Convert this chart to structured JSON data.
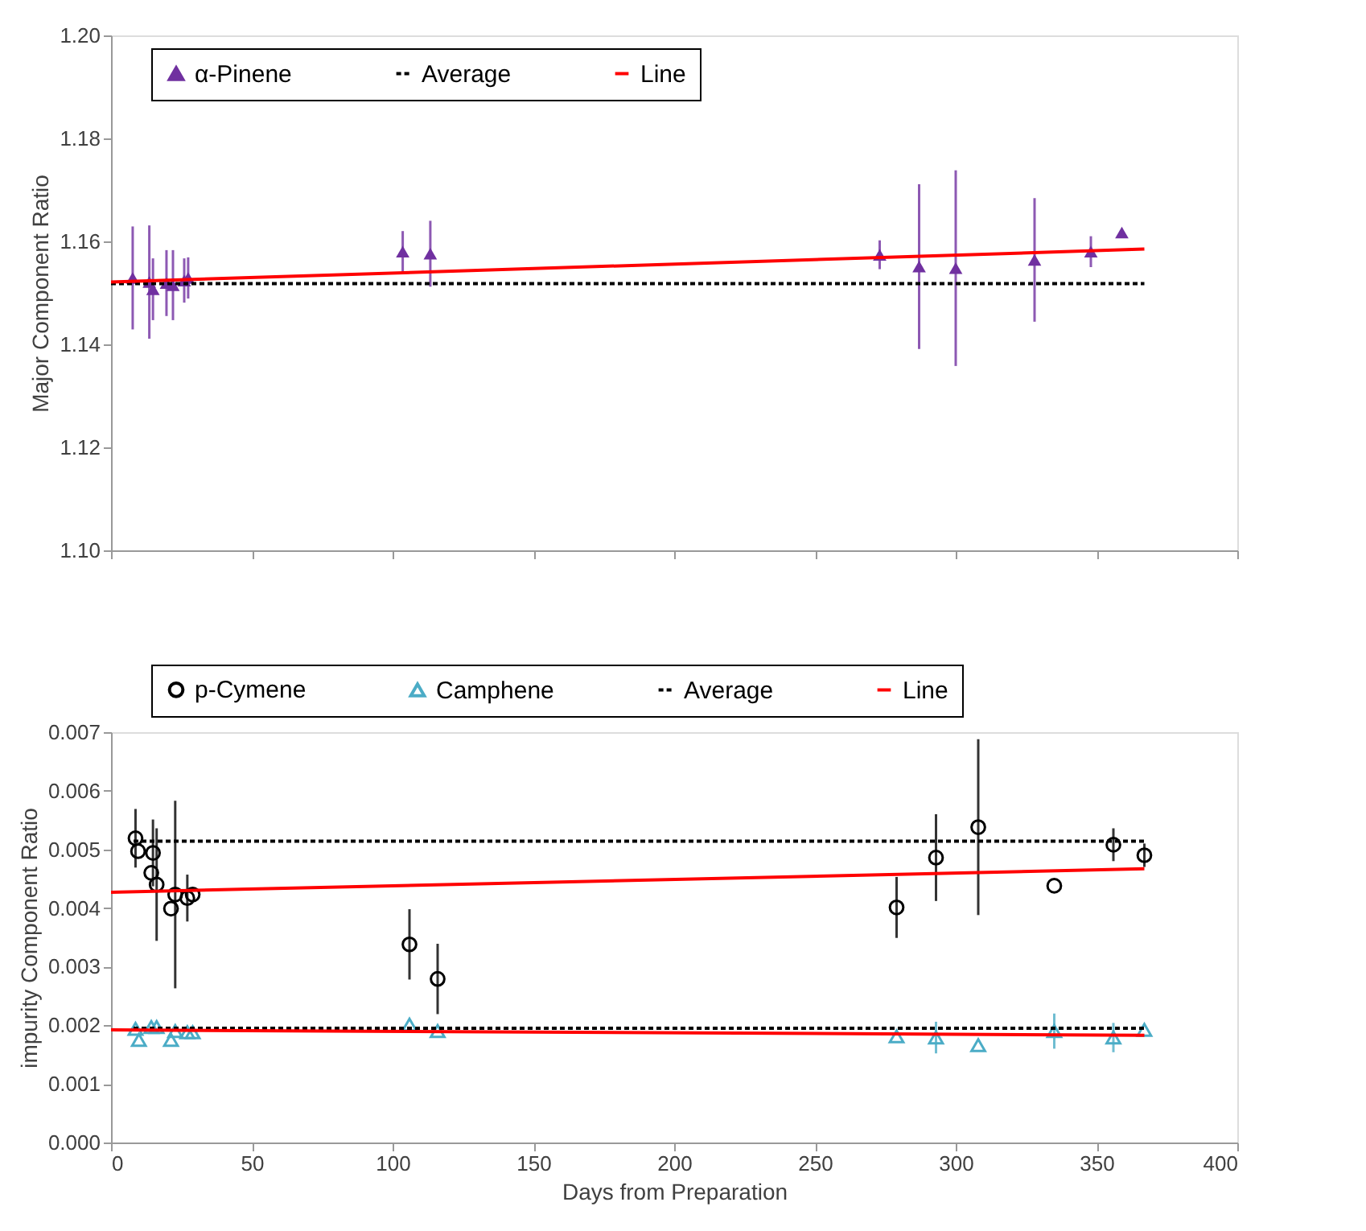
{
  "chart_data": [
    {
      "type": "scatter",
      "ylabel": "Major Component Ratio",
      "xlim": [
        0,
        400
      ],
      "xticks": [
        {
          "value": 0,
          "label": null
        },
        {
          "value": 50,
          "label": null
        },
        {
          "value": 100,
          "label": null
        },
        {
          "value": 150,
          "label": null
        },
        {
          "value": 200,
          "label": null
        },
        {
          "value": 250,
          "label": null
        },
        {
          "value": 300,
          "label": null
        },
        {
          "value": 350,
          "label": null
        },
        {
          "value": 400,
          "label": null
        }
      ],
      "ylim": [
        1.1,
        1.2
      ],
      "yticks": [
        {
          "value": 1.1,
          "label": "1.10"
        },
        {
          "value": 1.12,
          "label": "1.12"
        },
        {
          "value": 1.14,
          "label": "1.14"
        },
        {
          "value": 1.16,
          "label": "1.16"
        },
        {
          "value": 1.18,
          "label": "1.18"
        },
        {
          "value": 1.2,
          "label": "1.20"
        }
      ],
      "tick_labels": "y",
      "grid": false,
      "legend": "top",
      "series": [
        {
          "name": "α-Pinene",
          "type": "scatter",
          "marker": "triangle",
          "color": "#7030a0",
          "x": [
            7.7,
            13.6,
            14.9,
            19.7,
            22,
            26,
            27.4,
            103.6,
            113.4,
            273,
            287,
            300,
            328,
            348,
            359
          ],
          "values": [
            1.1529,
            1.1521,
            1.1507,
            1.1519,
            1.1515,
            1.1524,
            1.1529,
            1.158,
            1.1576,
            1.1574,
            1.1551,
            1.1548,
            1.1564,
            1.158,
            1.1617
          ],
          "errors": [
            0.01,
            0.011,
            0.006,
            0.0064,
            0.0068,
            0.0043,
            0.004,
            0.004,
            0.0064,
            0.0028,
            0.016,
            0.019,
            0.012,
            0.003,
            null
          ]
        },
        {
          "name": "Average",
          "type": "line",
          "line_style": "dashed",
          "color": "#000000",
          "x": [
            0,
            367
          ],
          "values": [
            1.1518,
            1.1518
          ]
        },
        {
          "name": "Line",
          "type": "line",
          "line_style": "solid",
          "color": "#ff0000",
          "x": [
            0,
            367
          ],
          "values": [
            1.1521,
            1.1585
          ]
        }
      ]
    },
    {
      "type": "scatter",
      "xlabel": "Days from Preparation",
      "ylabel": "impurity Component Ratio",
      "xlim": [
        0,
        400
      ],
      "xticks": [
        0,
        50,
        100,
        150,
        200,
        250,
        300,
        350,
        400
      ],
      "ylim": [
        0,
        0.007
      ],
      "yticks": [
        {
          "value": 0,
          "label": "0.000"
        },
        {
          "value": 0.001,
          "label": "0.001"
        },
        {
          "value": 0.002,
          "label": "0.002"
        },
        {
          "value": 0.003,
          "label": "0.003"
        },
        {
          "value": 0.004,
          "label": "0.004"
        },
        {
          "value": 0.005,
          "label": "0.005"
        },
        {
          "value": 0.006,
          "label": "0.006"
        },
        {
          "value": 0.007,
          "label": "0.007"
        }
      ],
      "grid": false,
      "legend": "top",
      "series": [
        {
          "name": "p-Cymene",
          "type": "scatter",
          "marker": "circle",
          "color": "#000000",
          "x": [
            8.7,
            9.6,
            14.9,
            14.3,
            16.2,
            21.3,
            22.8,
            27.1,
            29,
            106,
            116,
            279,
            293,
            308,
            335,
            356,
            367
          ],
          "values": [
            0.00519,
            0.00497,
            0.00494,
            0.0046,
            0.0044,
            0.00399,
            0.00423,
            0.00417,
            0.00423,
            0.00338,
            0.00279,
            0.00401,
            0.00486,
            0.00538,
            0.00438,
            0.00508,
            0.0049
          ],
          "errors": [
            0.0005,
            null,
            0.00057,
            null,
            0.00096,
            null,
            0.0016,
            0.0004,
            null,
            0.0006,
            0.0006,
            0.00052,
            0.00074,
            0.0015,
            null,
            0.00028,
            0.0002
          ]
        },
        {
          "name": "Camphene",
          "type": "scatter",
          "marker": "triangle",
          "color": "#4bacc6",
          "x": [
            8.7,
            9.9,
            14.3,
            16.2,
            21.3,
            22.8,
            27.1,
            29,
            106,
            116,
            279,
            293,
            308,
            335,
            356,
            367
          ],
          "values": [
            0.00194,
            0.00175,
            0.00197,
            0.00197,
            0.00175,
            0.0019,
            0.00188,
            0.00188,
            0.00201,
            0.0019,
            0.00181,
            0.00179,
            0.00166,
            0.0019,
            0.00179,
            0.00192
          ],
          "errors": [
            null,
            null,
            null,
            null,
            null,
            null,
            null,
            null,
            null,
            null,
            null,
            0.00027,
            null,
            0.0003,
            0.00025,
            null
          ]
        },
        {
          "name": "Average",
          "type": "line",
          "line_style": "dashed",
          "color": "#000000",
          "x": [
            8,
            367
          ],
          "values": [
            0.00514,
            0.00514
          ]
        },
        {
          "type": "line",
          "line_style": "dashed",
          "color": "#000000",
          "x": [
            8,
            367
          ],
          "values": [
            0.00195,
            0.00195
          ]
        },
        {
          "name": "Line",
          "type": "line",
          "line_style": "solid",
          "color": "#ff0000",
          "x": [
            0,
            367
          ],
          "values": [
            0.00427,
            0.00467
          ]
        },
        {
          "type": "line",
          "line_style": "solid",
          "color": "#ff0000",
          "x": [
            0,
            367
          ],
          "values": [
            0.00192,
            0.00183
          ]
        }
      ]
    }
  ]
}
